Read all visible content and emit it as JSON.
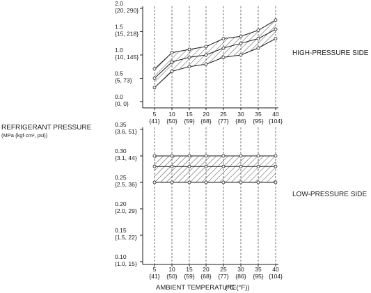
{
  "chart_data": [
    {
      "type": "area",
      "panel": "high",
      "side_label": "HIGH-PRESSURE SIDE",
      "x": [
        5,
        10,
        15,
        20,
        25,
        30,
        35,
        40
      ],
      "x_tick_labels": [
        {
          "c": "5",
          "f": "{41}"
        },
        {
          "c": "10",
          "f": "{50}"
        },
        {
          "c": "15",
          "f": "{59}"
        },
        {
          "c": "20",
          "f": "{68}"
        },
        {
          "c": "25",
          "f": "{77}"
        },
        {
          "c": "30",
          "f": "{86}"
        },
        {
          "c": "35",
          "f": "{95}"
        },
        {
          "c": "40",
          "f": "{104}"
        }
      ],
      "y_ticks": [
        {
          "value": 2.0,
          "mpa": "2.0",
          "alt": "{20, 290}"
        },
        {
          "value": 1.5,
          "mpa": "1.5",
          "alt": "{15, 218}"
        },
        {
          "value": 1.0,
          "mpa": "1.0",
          "alt": "{10, 145}"
        },
        {
          "value": 0.5,
          "mpa": "0.5",
          "alt": "{5, 73}"
        },
        {
          "value": 0.0,
          "mpa": "0.0",
          "alt": "{0, 0}"
        }
      ],
      "ylim": [
        0.0,
        2.0
      ],
      "series": [
        {
          "values": [
            0.7,
            1.05,
            1.12,
            1.18,
            1.35,
            1.4,
            1.53,
            1.75
          ]
        },
        {
          "values": [
            0.5,
            0.85,
            0.95,
            1.0,
            1.15,
            1.25,
            1.35,
            1.55
          ]
        },
        {
          "values": [
            0.3,
            0.65,
            0.75,
            0.8,
            0.95,
            1.0,
            1.15,
            1.35
          ]
        }
      ],
      "band_fill": "hatched"
    },
    {
      "type": "area",
      "panel": "low",
      "side_label": "LOW-PRESSURE SIDE",
      "x": [
        5,
        10,
        15,
        20,
        25,
        30,
        35,
        40
      ],
      "x_tick_labels": [
        {
          "c": "5",
          "f": "{41}"
        },
        {
          "c": "10",
          "f": "{50}"
        },
        {
          "c": "15",
          "f": "{59}"
        },
        {
          "c": "20",
          "f": "{68}"
        },
        {
          "c": "25",
          "f": "{77}"
        },
        {
          "c": "30",
          "f": "{86}"
        },
        {
          "c": "35",
          "f": "{95}"
        },
        {
          "c": "40",
          "f": "{104}"
        }
      ],
      "y_ticks": [
        {
          "value": 0.35,
          "mpa": "0.35",
          "alt": "{3.6, 51}"
        },
        {
          "value": 0.3,
          "mpa": "0.30",
          "alt": "{3.1, 44}"
        },
        {
          "value": 0.25,
          "mpa": "0.25",
          "alt": "{2.5, 36}"
        },
        {
          "value": 0.2,
          "mpa": "0.20",
          "alt": "{2.0, 29}"
        },
        {
          "value": 0.15,
          "mpa": "0.15",
          "alt": "{1.5, 22}"
        },
        {
          "value": 0.1,
          "mpa": "0.10",
          "alt": "{1.0, 15}"
        }
      ],
      "ylim": [
        0.08,
        0.35
      ],
      "series": [
        {
          "values": [
            0.3,
            0.3,
            0.3,
            0.3,
            0.3,
            0.3,
            0.3,
            0.3
          ]
        },
        {
          "values": [
            0.28,
            0.28,
            0.28,
            0.28,
            0.28,
            0.28,
            0.28,
            0.28
          ]
        },
        {
          "values": [
            0.25,
            0.25,
            0.25,
            0.25,
            0.25,
            0.25,
            0.25,
            0.25
          ]
        }
      ],
      "band_fill": "hatched"
    }
  ],
  "ylabel": "REFRIGERANT PRESSURE",
  "ylabel_units": "(MPa {kgf·cm², psi})",
  "xlabel": "AMBIENT TEMPERATURE",
  "xlabel_units": "(°C (°F))",
  "colors": {
    "line": "#1a1a1a",
    "grid": "#555555",
    "background": "#ffffff"
  }
}
